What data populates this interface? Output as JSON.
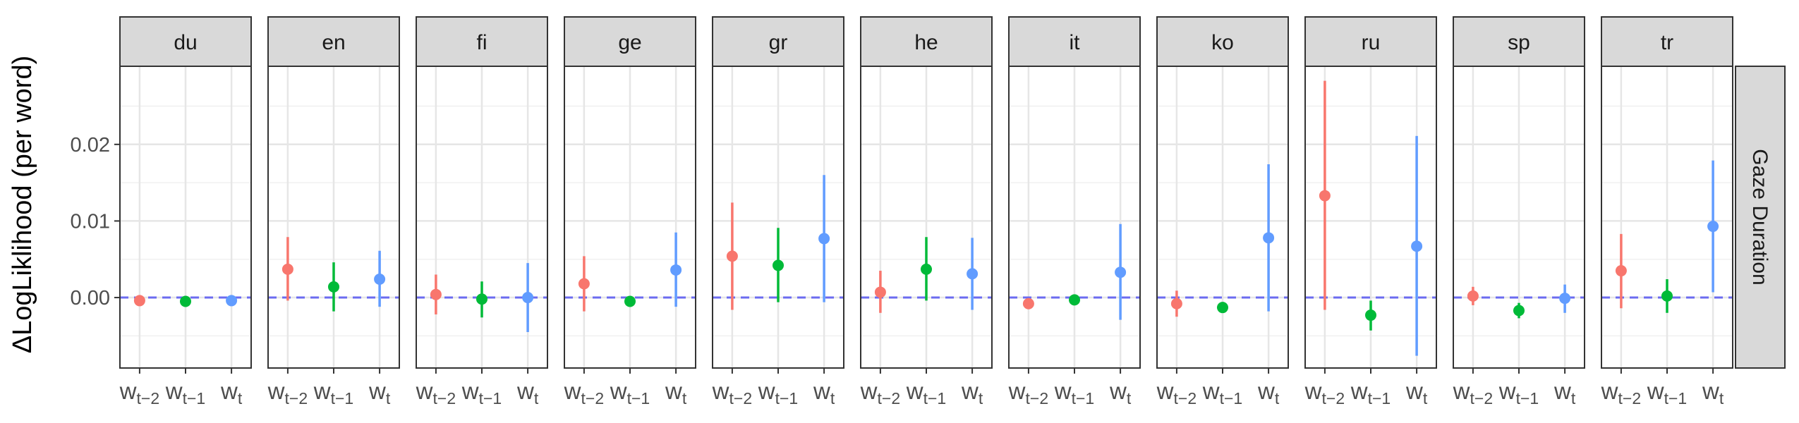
{
  "chart_data": {
    "type": "scatter",
    "subtype": "point-range-facets",
    "ylabel": "ΔLogLiklihood (per word)",
    "row_strip": "Gaze Duration",
    "ylim": [
      -0.0092,
      0.0302
    ],
    "yticks": [
      0.0,
      0.01,
      0.02
    ],
    "ytick_labels": [
      "0.00",
      "0.01",
      "0.02"
    ],
    "reference_line": {
      "y": 0.0,
      "style": "dashed",
      "color": "#6b6bf0"
    },
    "grid": true,
    "categories": [
      {
        "base": "w",
        "sub": "t−2",
        "color": "#F8766D"
      },
      {
        "base": "w",
        "sub": "t−1",
        "color": "#00BA38"
      },
      {
        "base": "w",
        "sub": "t",
        "color": "#619CFF"
      }
    ],
    "facets": [
      {
        "name": "du",
        "points": [
          {
            "y": -0.0004,
            "low": -0.0008,
            "high": 0.0
          },
          {
            "y": -0.0005,
            "low": -0.0008,
            "high": -0.0002
          },
          {
            "y": -0.0004,
            "low": -0.0008,
            "high": 0.0
          }
        ]
      },
      {
        "name": "en",
        "points": [
          {
            "y": 0.0037,
            "low": -0.0004,
            "high": 0.0079
          },
          {
            "y": 0.0014,
            "low": -0.0018,
            "high": 0.0046
          },
          {
            "y": 0.0024,
            "low": -0.0012,
            "high": 0.0061
          }
        ]
      },
      {
        "name": "fi",
        "points": [
          {
            "y": 0.0004,
            "low": -0.0022,
            "high": 0.003
          },
          {
            "y": -0.0002,
            "low": -0.0026,
            "high": 0.0021
          },
          {
            "y": 0.0,
            "low": -0.0045,
            "high": 0.0045
          }
        ]
      },
      {
        "name": "ge",
        "points": [
          {
            "y": 0.0018,
            "low": -0.0018,
            "high": 0.0054
          },
          {
            "y": -0.0005,
            "low": -0.0009,
            "high": -0.0001
          },
          {
            "y": 0.0036,
            "low": -0.0012,
            "high": 0.0085
          }
        ]
      },
      {
        "name": "gr",
        "points": [
          {
            "y": 0.0054,
            "low": -0.0016,
            "high": 0.0124
          },
          {
            "y": 0.0042,
            "low": -0.0006,
            "high": 0.0091
          },
          {
            "y": 0.0077,
            "low": -0.0006,
            "high": 0.016
          }
        ]
      },
      {
        "name": "he",
        "points": [
          {
            "y": 0.0007,
            "low": -0.002,
            "high": 0.0035
          },
          {
            "y": 0.0037,
            "low": -0.0004,
            "high": 0.0079
          },
          {
            "y": 0.0031,
            "low": -0.0016,
            "high": 0.0078
          }
        ]
      },
      {
        "name": "it",
        "points": [
          {
            "y": -0.0008,
            "low": -0.0012,
            "high": -0.0004
          },
          {
            "y": -0.0003,
            "low": -0.0007,
            "high": 0.0001
          },
          {
            "y": 0.0033,
            "low": -0.0029,
            "high": 0.0096
          }
        ]
      },
      {
        "name": "ko",
        "points": [
          {
            "y": -0.0008,
            "low": -0.0025,
            "high": 0.0009
          },
          {
            "y": -0.0013,
            "low": -0.0018,
            "high": -0.0008
          },
          {
            "y": 0.0078,
            "low": -0.0018,
            "high": 0.0174
          }
        ]
      },
      {
        "name": "ru",
        "points": [
          {
            "y": 0.0133,
            "low": -0.0016,
            "high": 0.0283
          },
          {
            "y": -0.0023,
            "low": -0.0043,
            "high": -0.0004
          },
          {
            "y": 0.0067,
            "low": -0.0076,
            "high": 0.0211
          }
        ]
      },
      {
        "name": "sp",
        "points": [
          {
            "y": 0.0002,
            "low": -0.001,
            "high": 0.0014
          },
          {
            "y": -0.0017,
            "low": -0.0027,
            "high": -0.0007
          },
          {
            "y": -0.0001,
            "low": -0.002,
            "high": 0.0017
          }
        ]
      },
      {
        "name": "tr",
        "points": [
          {
            "y": 0.0035,
            "low": -0.0014,
            "high": 0.0083
          },
          {
            "y": 0.0002,
            "low": -0.002,
            "high": 0.0024
          },
          {
            "y": 0.0093,
            "low": 0.0007,
            "high": 0.0179
          }
        ]
      }
    ]
  }
}
